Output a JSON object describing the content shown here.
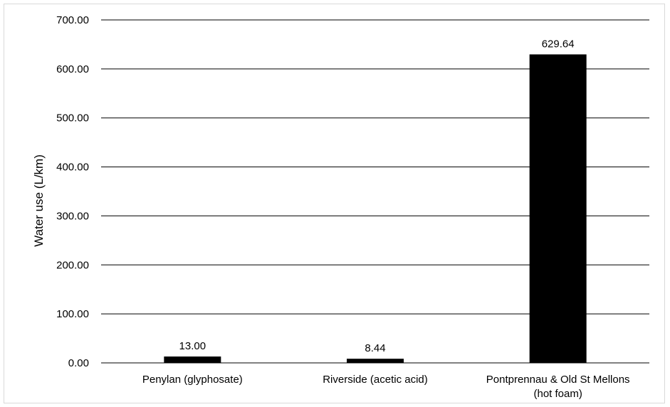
{
  "chart_data": {
    "type": "bar",
    "title": "",
    "xlabel": "",
    "ylabel": "Water use (L/km)",
    "ylim": [
      0,
      700
    ],
    "yticks": [
      0,
      100,
      200,
      300,
      400,
      500,
      600,
      700
    ],
    "ytick_labels": [
      "0.00",
      "100.00",
      "200.00",
      "300.00",
      "400.00",
      "500.00",
      "600.00",
      "700.00"
    ],
    "grid": true,
    "legend": "none",
    "categories": [
      [
        "Penylan (glyphosate)"
      ],
      [
        "Riverside (acetic acid)"
      ],
      [
        "Pontprennau & Old St Mellons",
        "(hot foam)"
      ]
    ],
    "values": [
      13.0,
      8.44,
      629.64
    ],
    "data_labels": [
      "13.00",
      "8.44",
      "629.64"
    ],
    "colors": {
      "bar": "#000000",
      "grid": "#000000",
      "text": "#000000",
      "frame": "#d9d9d9"
    }
  }
}
